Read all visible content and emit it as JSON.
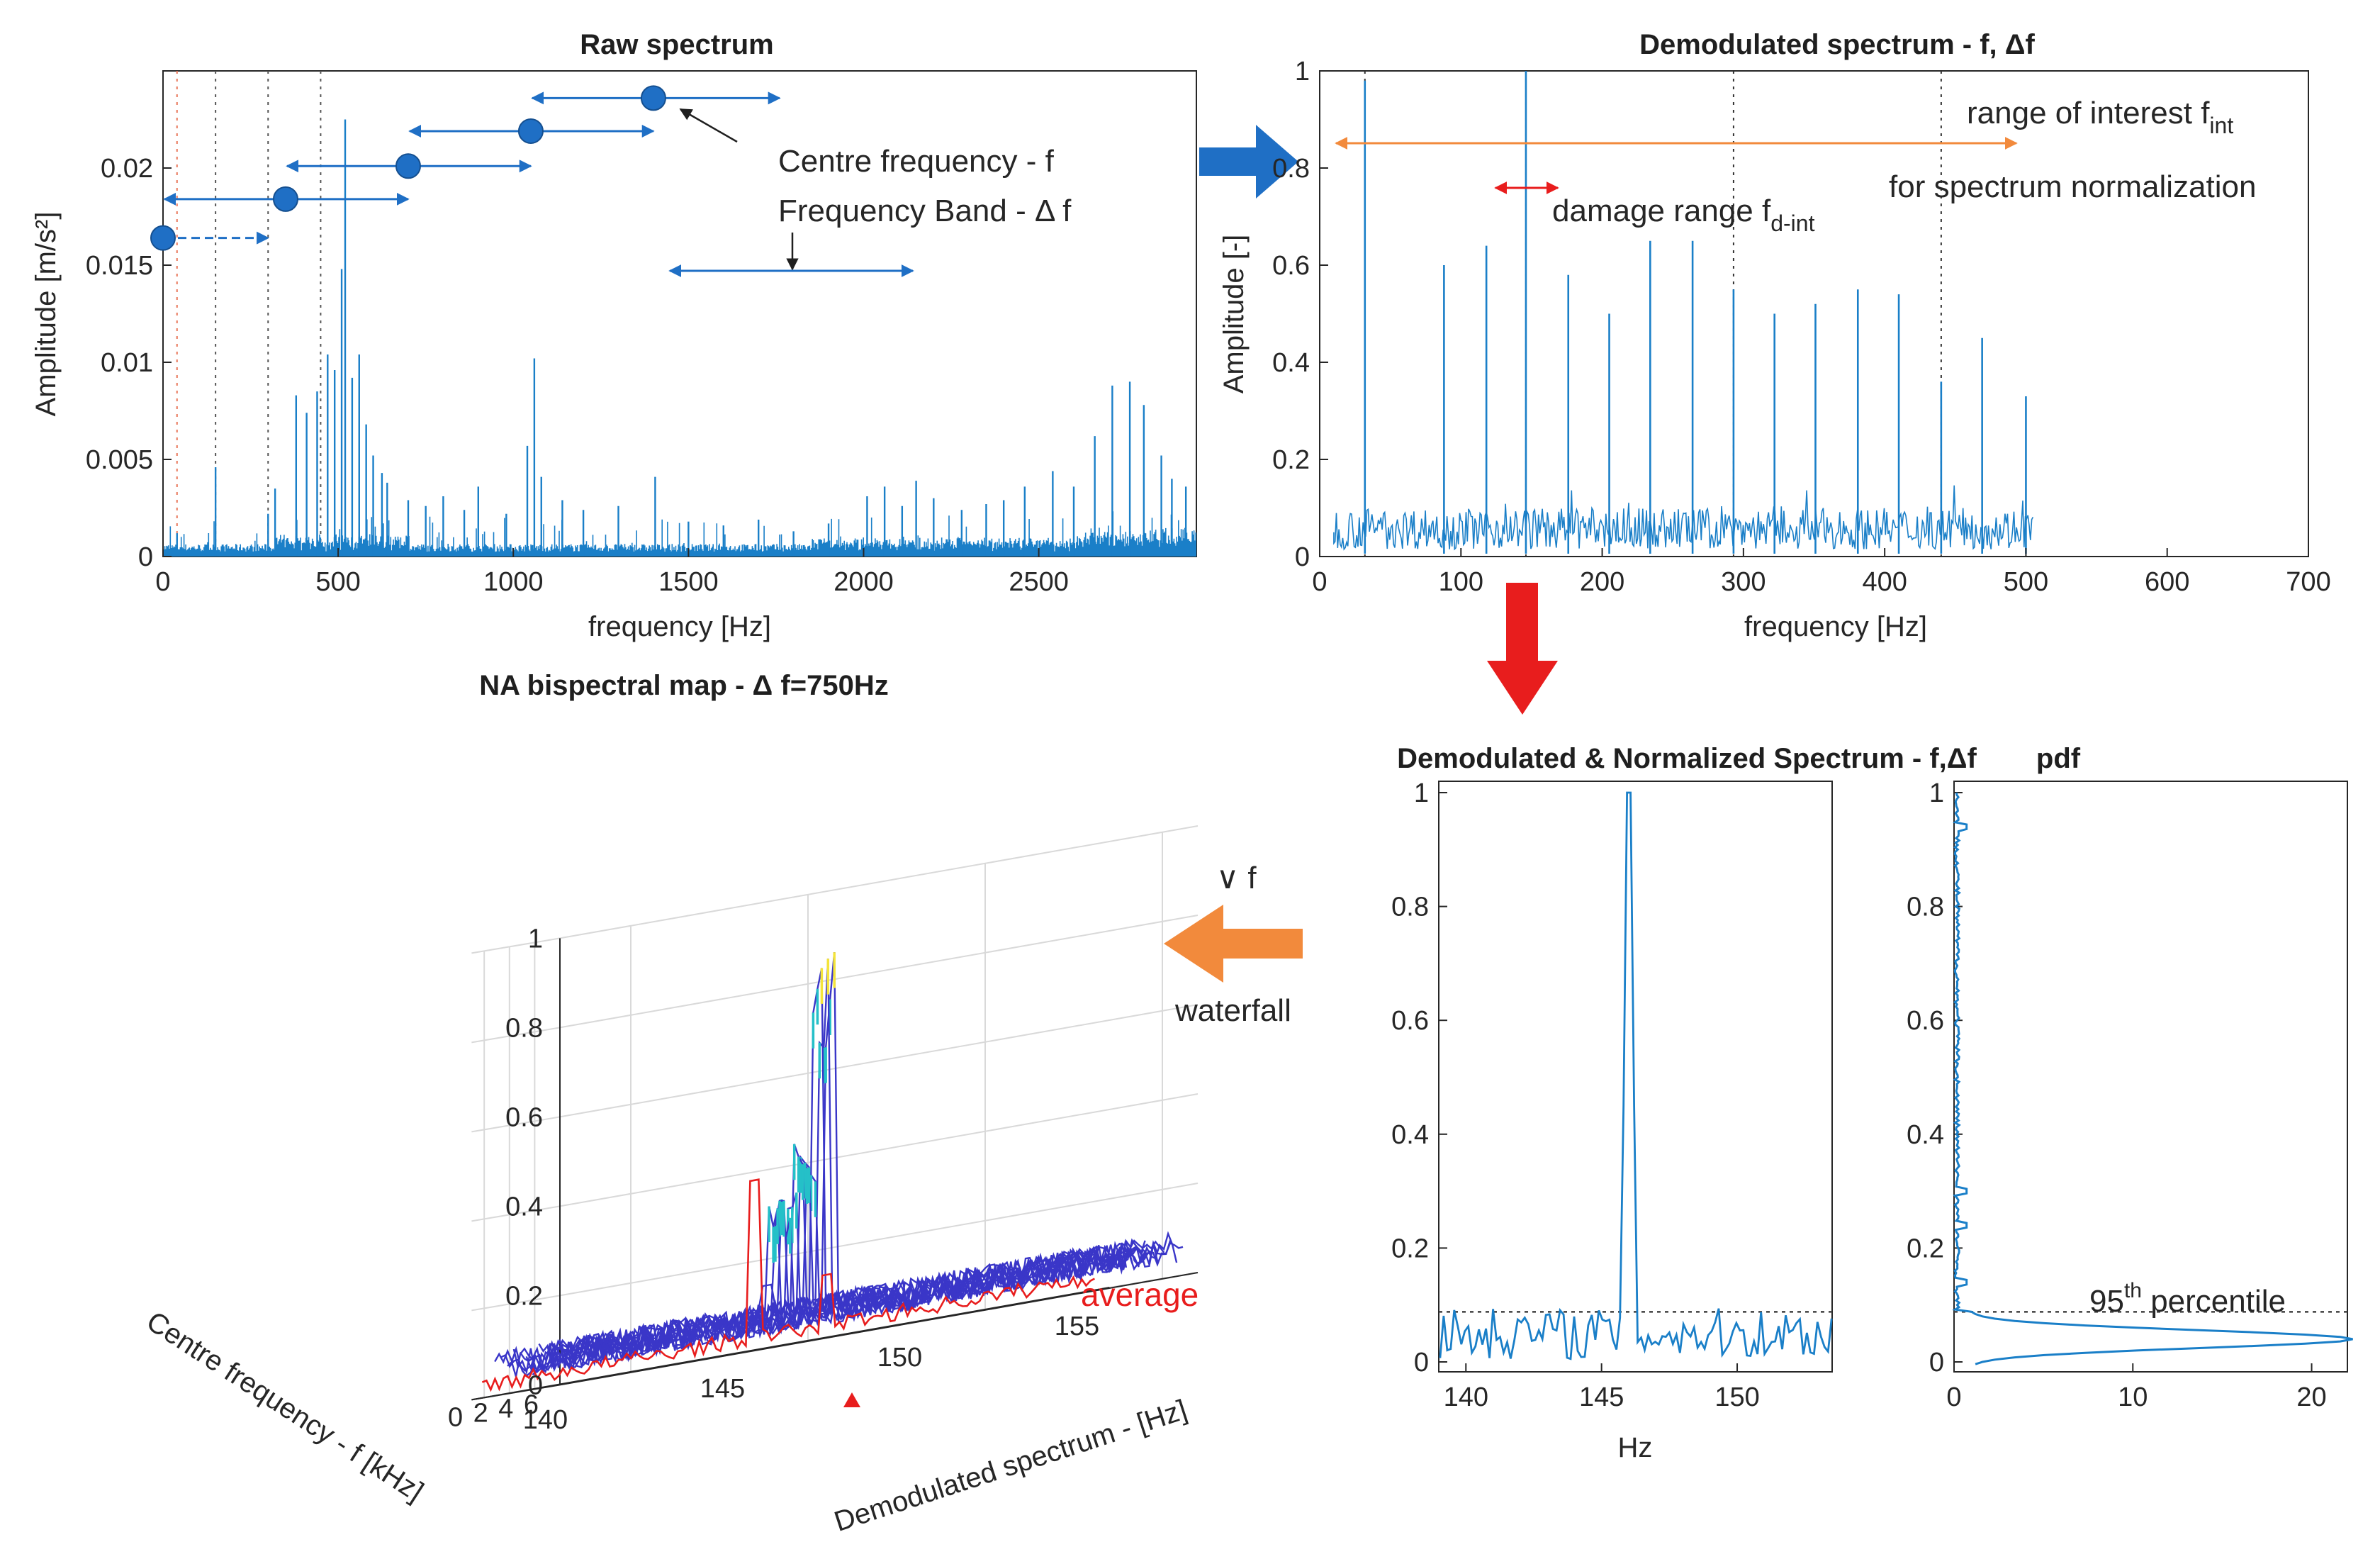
{
  "chart_data": [
    {
      "type": "line",
      "title": "Raw spectrum",
      "xlabel": "frequency [Hz]",
      "ylabel": "Amplitude [m/s²]",
      "xlim": [
        0,
        2950
      ],
      "ylim": [
        0,
        0.025
      ],
      "xticks": [
        "0",
        "500",
        "1000",
        "1500",
        "2000",
        "2500"
      ],
      "yticks": [
        "0",
        "0.005",
        "0.01",
        "0.015",
        "0.02"
      ],
      "spikes": [
        [
          40,
          0.0012
        ],
        [
          150,
          0.0046
        ],
        [
          300,
          0.0022
        ],
        [
          320,
          0.0035
        ],
        [
          380,
          0.0083
        ],
        [
          410,
          0.0074
        ],
        [
          440,
          0.0085
        ],
        [
          470,
          0.0104
        ],
        [
          490,
          0.0096
        ],
        [
          510,
          0.0148
        ],
        [
          520,
          0.0225
        ],
        [
          540,
          0.0092
        ],
        [
          560,
          0.0104
        ],
        [
          580,
          0.0068
        ],
        [
          600,
          0.0052
        ],
        [
          625,
          0.0043
        ],
        [
          640,
          0.0038
        ],
        [
          700,
          0.0029
        ],
        [
          750,
          0.0026
        ],
        [
          800,
          0.0031
        ],
        [
          860,
          0.0024
        ],
        [
          900,
          0.0036
        ],
        [
          980,
          0.0022
        ],
        [
          1040,
          0.0057
        ],
        [
          1060,
          0.0102
        ],
        [
          1080,
          0.0041
        ],
        [
          1140,
          0.0029
        ],
        [
          1200,
          0.0024
        ],
        [
          1300,
          0.0026
        ],
        [
          1405,
          0.0041
        ],
        [
          1500,
          0.0018
        ],
        [
          1600,
          0.0016
        ],
        [
          1700,
          0.0019
        ],
        [
          1800,
          0.0013
        ],
        [
          1900,
          0.0017
        ],
        [
          2010,
          0.0031
        ],
        [
          2060,
          0.0036
        ],
        [
          2110,
          0.0026
        ],
        [
          2150,
          0.0039
        ],
        [
          2200,
          0.003
        ],
        [
          2280,
          0.0024
        ],
        [
          2350,
          0.0027
        ],
        [
          2400,
          0.0029
        ],
        [
          2460,
          0.0036
        ],
        [
          2540,
          0.0044
        ],
        [
          2600,
          0.0036
        ],
        [
          2660,
          0.0062
        ],
        [
          2710,
          0.0088
        ],
        [
          2760,
          0.009
        ],
        [
          2800,
          0.0078
        ],
        [
          2850,
          0.0052
        ],
        [
          2880,
          0.004
        ],
        [
          2920,
          0.0036
        ]
      ],
      "markers": [
        {
          "f": 0,
          "a": 0.0164,
          "x1": 0,
          "x2": 300
        },
        {
          "f": 350,
          "a": 0.0184,
          "x1": 0,
          "x2": 700
        },
        {
          "f": 700,
          "a": 0.0201,
          "x1": 350,
          "x2": 1050
        },
        {
          "f": 1050,
          "a": 0.0219,
          "x1": 700,
          "x2": 1400
        },
        {
          "f": 1400,
          "a": 0.0236,
          "x1": 1050,
          "x2": 1760
        }
      ],
      "dotted_lines_hz": [
        40,
        150,
        300,
        450
      ],
      "annotations": {
        "centre": "Centre frequency - f",
        "band": "Frequency Band - Δ f"
      }
    },
    {
      "type": "line",
      "title": "Demodulated spectrum - f, Δf",
      "xlabel": "frequency [Hz]",
      "ylabel": "Amplitude [-]",
      "xlim": [
        0,
        700
      ],
      "ylim": [
        0,
        1
      ],
      "xticks": [
        "0",
        "100",
        "200",
        "300",
        "400",
        "500",
        "600",
        "700"
      ],
      "yticks": [
        "0",
        "0.2",
        "0.4",
        "0.6",
        "0.8",
        "1"
      ],
      "peaks": [
        [
          32,
          0.98
        ],
        [
          88,
          0.6
        ],
        [
          118,
          0.64
        ],
        [
          146,
          1.0
        ],
        [
          176,
          0.58
        ],
        [
          205,
          0.5
        ],
        [
          234,
          0.65
        ],
        [
          264,
          0.65
        ],
        [
          293,
          0.55
        ],
        [
          322,
          0.5
        ],
        [
          351,
          0.52
        ],
        [
          381,
          0.55
        ],
        [
          410,
          0.54
        ],
        [
          440,
          0.36
        ],
        [
          469,
          0.45
        ],
        [
          500,
          0.33
        ]
      ],
      "dotted_lines_hz": [
        32,
        146,
        293,
        440
      ],
      "annotations": {
        "range_of_interest": "range of interest f",
        "range_sub": "int",
        "normalization": "for spectrum normalization",
        "damage": "damage range f",
        "damage_sub": "d-int"
      }
    },
    {
      "type": "line",
      "title": "NA bispectral map - Δ f=750Hz",
      "xlabel": "Demodulated spectrum - [Hz]",
      "ylabel": "Centre frequency - f [kHz]",
      "zticks": [
        "0",
        "0.2",
        "0.4",
        "0.6",
        "0.8",
        "1"
      ],
      "xticks": [
        "140",
        "145",
        "150",
        "155"
      ],
      "yticks": [
        "0",
        "2",
        "4",
        "6"
      ],
      "legend": "average",
      "waterfall_label": "waterfall",
      "nabla_label": "∨ f"
    },
    {
      "type": "line",
      "title": "Demodulated & Normalized Spectrum - f,Δf",
      "xlabel": "Hz",
      "xlim": [
        139,
        153.5
      ],
      "ylim": [
        0,
        1
      ],
      "xticks": [
        "140",
        "145",
        "150"
      ],
      "yticks": [
        "0",
        "0.2",
        "0.4",
        "0.6",
        "0.8",
        "1"
      ],
      "peak_hz": 146,
      "threshold": 0.088
    },
    {
      "type": "line",
      "title": "pdf",
      "xlim": [
        0,
        22
      ],
      "ylim": [
        0,
        1
      ],
      "xticks": [
        "0",
        "10",
        "20"
      ],
      "yticks": [
        "0",
        "0.2",
        "0.4",
        "0.6",
        "0.8",
        "1"
      ],
      "percentile_label": "95",
      "percentile_sup": "th",
      "percentile_suffix": " percentile",
      "threshold": 0.088
    }
  ]
}
